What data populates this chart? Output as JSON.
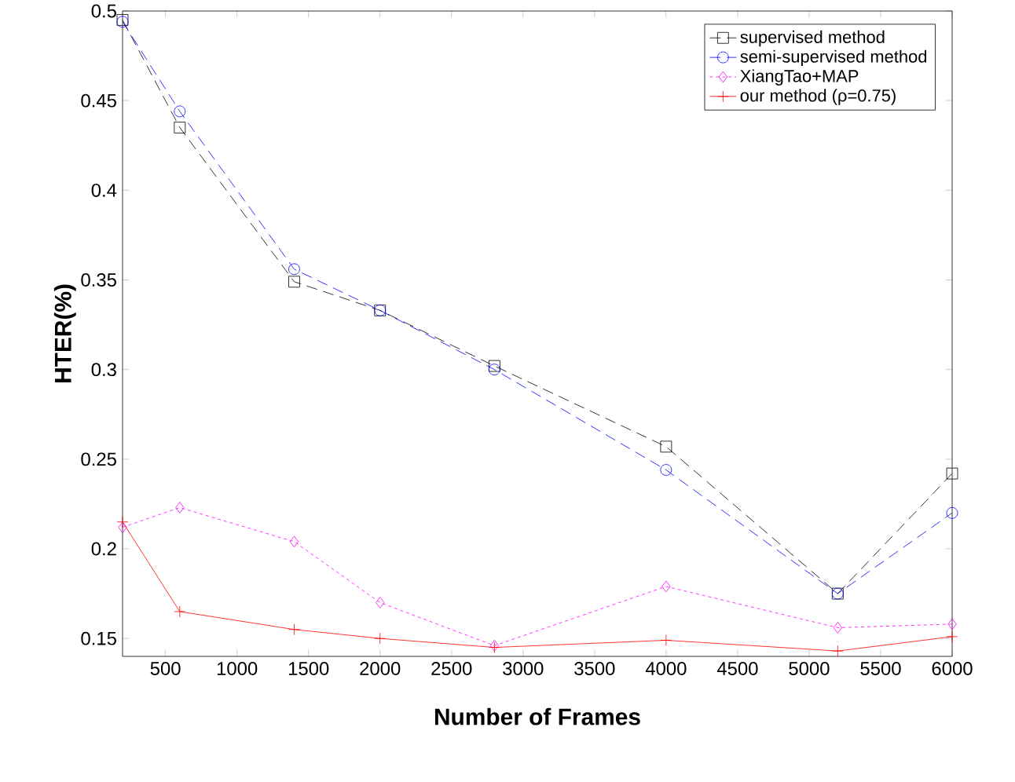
{
  "chart_data": {
    "type": "line",
    "xlabel": "Number of Frames",
    "ylabel": "HTER(%)",
    "x": [
      200,
      600,
      1400,
      2000,
      2800,
      4000,
      5200,
      6000
    ],
    "series": [
      {
        "name": "supervised method",
        "color": "#000000",
        "marker": "square",
        "line_style": "dashed",
        "values": [
          0.495,
          0.435,
          0.349,
          0.333,
          0.302,
          0.257,
          0.175,
          0.242
        ]
      },
      {
        "name": "semi-supervised method",
        "color": "#0000ff",
        "marker": "circle",
        "line_style": "dashed",
        "values": [
          0.494,
          0.444,
          0.356,
          0.333,
          0.3,
          0.244,
          0.175,
          0.22
        ]
      },
      {
        "name": "XiangTao+MAP",
        "color": "#ff00ff",
        "marker": "diamond",
        "line_style": "dotted",
        "values": [
          0.212,
          0.223,
          0.204,
          0.17,
          0.146,
          0.179,
          0.156,
          0.158
        ]
      },
      {
        "name": "our method (ρ=0.75)",
        "color": "#ff0000",
        "marker": "cross",
        "line_style": "solid",
        "values": [
          0.215,
          0.165,
          0.155,
          0.15,
          0.145,
          0.149,
          0.143,
          0.151
        ]
      }
    ],
    "xlim": [
      200,
      6000
    ],
    "ylim": [
      0.14,
      0.5
    ],
    "xticks": [
      500,
      1000,
      1500,
      2000,
      2500,
      3000,
      3500,
      4000,
      4500,
      5000,
      5500,
      6000
    ],
    "yticks": [
      0.15,
      0.2,
      0.25,
      0.3,
      0.35,
      0.4,
      0.45,
      0.5
    ],
    "legend": "top right",
    "grid": false
  }
}
